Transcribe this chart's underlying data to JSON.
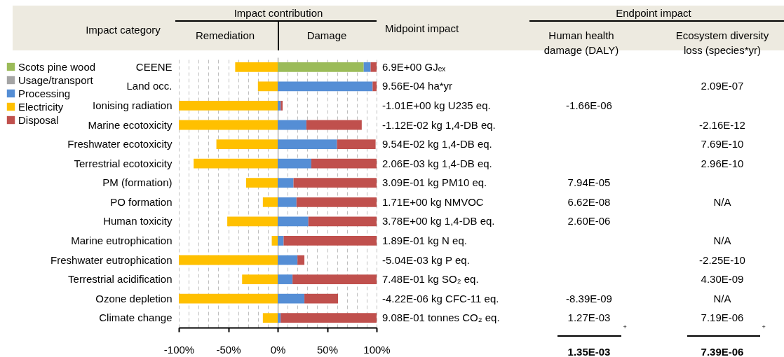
{
  "chart_data": {
    "type": "bar",
    "orientation": "horizontal",
    "stacked": true,
    "ylabel": "Impact category",
    "categories": [
      "CEENE",
      "Land occ.",
      "Ionising radiation",
      "Marine ecotoxicity",
      "Freshwater ecotoxicity",
      "Terrestrial ecotoxicity",
      "PM (formation)",
      "PO formation",
      "Human toxicity",
      "Marine eutrophication",
      "Freshwater eutrophication",
      "Terrestrial acidification",
      "Ozone depletion",
      "Climate change"
    ],
    "series": [
      {
        "name": "Scots pine wood",
        "color": "#9bbb59",
        "values": [
          87,
          null,
          null,
          null,
          null,
          null,
          null,
          null,
          null,
          null,
          null,
          null,
          null,
          null
        ]
      },
      {
        "name": "Usage/transport",
        "color": "#a5a5a5",
        "values": [
          null,
          null,
          null,
          null,
          null,
          null,
          null,
          null,
          null,
          null,
          null,
          null,
          null,
          null
        ]
      },
      {
        "name": "Processing",
        "color": "#558ed5",
        "values": [
          7,
          96,
          3,
          29,
          60,
          34,
          16,
          19,
          31,
          6,
          20,
          15,
          27,
          3
        ]
      },
      {
        "name": "Electricity",
        "color": "#ffc000",
        "values": [
          -43,
          -20,
          -100,
          -100,
          -62,
          -85,
          -32,
          -15,
          -51,
          -6,
          -100,
          -36,
          -100,
          -15
        ]
      },
      {
        "name": "Disposal",
        "color": "#c0504d",
        "values": [
          6,
          4,
          2,
          56,
          39,
          66,
          84,
          81,
          69,
          94,
          7,
          85,
          34,
          97
        ]
      }
    ],
    "xlim": [
      -100,
      100
    ],
    "xticks": [
      {
        "value": -100,
        "label": "-100%"
      },
      {
        "value": -90,
        "label": null
      },
      {
        "value": -80,
        "label": null
      },
      {
        "value": -70,
        "label": null
      },
      {
        "value": -60,
        "label": null
      },
      {
        "value": -50,
        "label": "-50%"
      },
      {
        "value": -40,
        "label": null
      },
      {
        "value": -30,
        "label": null
      },
      {
        "value": -20,
        "label": null
      },
      {
        "value": -10,
        "label": null
      },
      {
        "value": 0,
        "label": "0%"
      },
      {
        "value": 10,
        "label": null
      },
      {
        "value": 20,
        "label": null
      },
      {
        "value": 30,
        "label": null
      },
      {
        "value": 40,
        "label": null
      },
      {
        "value": 50,
        "label": "50%"
      },
      {
        "value": 60,
        "label": null
      },
      {
        "value": 70,
        "label": null
      },
      {
        "value": 80,
        "label": null
      },
      {
        "value": 90,
        "label": null
      },
      {
        "value": 100,
        "label": "100%"
      }
    ],
    "grid": "x",
    "legend": "left",
    "annotations": [
      "Impact contribution",
      "Remediation",
      "Damage",
      "Midpoint impact",
      "Endpoint impact",
      "Human health damage (DALY)",
      "Ecosystem diversity loss (species*yr)",
      "6.9E+00 GJₑₓ",
      "9.56E-04 ha*yr",
      "-1.01E+00 kg U235 eq.",
      "-1.12E-02 kg 1,4-DB eq.",
      "9.54E-02 kg 1,4-DB eq.",
      "2.06E-03 kg 1,4-DB eq.",
      "3.09E-01 kg PM10 eq.",
      "1.71E+00 kg NMVOC",
      "3.78E+00 kg 1,4-DB eq.",
      "1.89E-01 kg N eq.",
      "-5.04E-03 kg P eq.",
      "7.48E-01 kg SO₂ eq.",
      "-4.22E-06 kg CFC-11 eq.",
      "9.08E-01 tonnes CO₂ eq.",
      "-1.66E-06",
      "7.94E-05",
      "6.62E-08",
      "2.60E-06",
      "-8.39E-09",
      "1.27E-03",
      "2.09E-07",
      "-2.16E-12",
      "7.69E-10",
      "2.96E-10",
      "N/A",
      "N/A",
      "-2.25E-10",
      "4.30E-09",
      "N/A",
      "7.19E-06",
      "+",
      "+",
      "1.35E-03",
      "7.39E-06"
    ]
  }
}
